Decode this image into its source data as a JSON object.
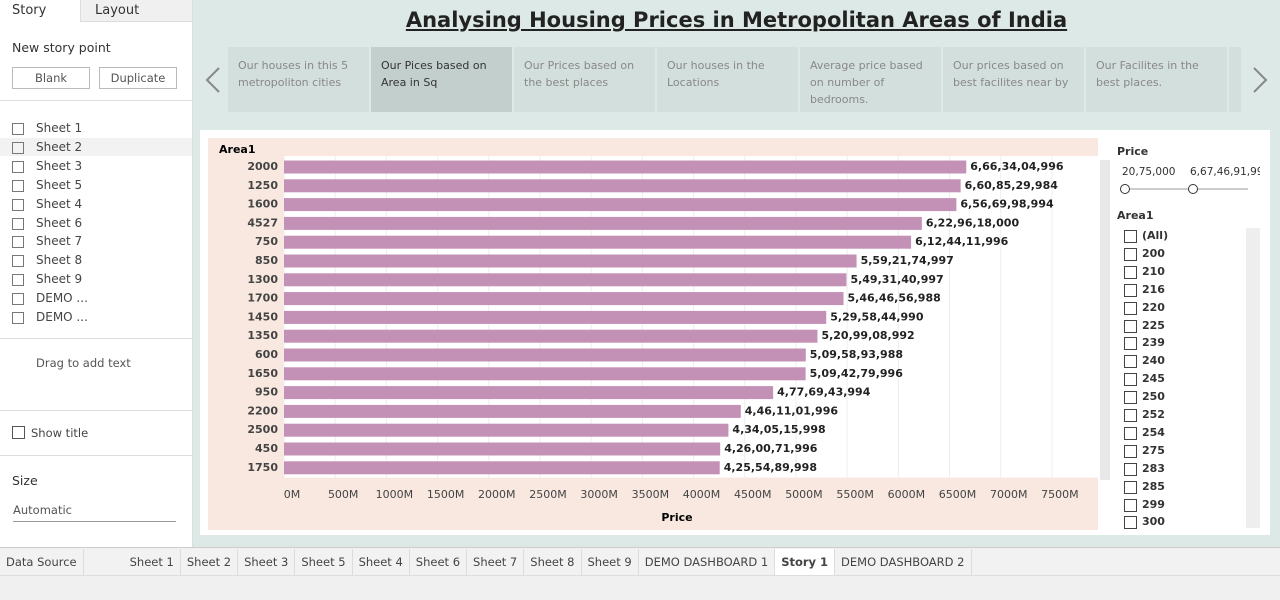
{
  "side_panel": {
    "tabs": [
      "Story",
      "Layout"
    ],
    "new_story_point": "New story point",
    "buttons": [
      "Blank",
      "Duplicate"
    ],
    "sheets": [
      "Sheet 1",
      "Sheet 2",
      "Sheet 3",
      "Sheet 5",
      "Sheet 4",
      "Sheet 6",
      "Sheet 7",
      "Sheet 8",
      "Sheet 9",
      "DEMO ...",
      "DEMO ..."
    ],
    "drag_text": "Drag to add text",
    "show_title": "Show title",
    "size_label": "Size",
    "size_value": "Automatic"
  },
  "story": {
    "title": "Analysing Housing Prices in Metropolitan Areas of India",
    "points": [
      "Our  houses in this 5 metropoliton cities",
      "Our Pices based on Area in Sq",
      "Our Prices based on the best places",
      "Our houses in the Locations",
      "Average price based on number of bedrooms.",
      "Our prices based on best facilites near by",
      "Our Facilites in the best places."
    ]
  },
  "chart_data": {
    "type": "bar",
    "orientation": "horizontal",
    "x_label": "Price",
    "y_label": "Area1",
    "categories": [
      "2000",
      "1250",
      "1600",
      "4527",
      "750",
      "850",
      "1300",
      "1700",
      "1450",
      "1350",
      "600",
      "1650",
      "950",
      "2200",
      "2500",
      "450",
      "1750"
    ],
    "values": [
      6663404996,
      6608529984,
      6566998994,
      6229618000,
      6124411996,
      5592174997,
      5493140997,
      5464656988,
      5295844990,
      5209908992,
      5095893988,
      5094279996,
      4776943994,
      4461101996,
      4340515998,
      4260071996,
      4255489998
    ],
    "value_labels": [
      "6,66,34,04,996",
      "6,60,85,29,984",
      "6,56,69,98,994",
      "6,22,96,18,000",
      "6,12,44,11,996",
      "5,59,21,74,997",
      "5,49,31,40,997",
      "5,46,46,56,988",
      "5,29,58,44,990",
      "5,20,99,08,992",
      "5,09,58,93,988",
      "5,09,42,79,996",
      "4,77,69,43,994",
      "4,46,11,01,996",
      "4,34,05,15,998",
      "4,26,00,71,996",
      "4,25,54,89,998"
    ],
    "color": "#c390b6",
    "grid": true,
    "xlim": [
      0,
      7950000000
    ],
    "xticks": [
      {
        "value": 0,
        "label": "0M"
      },
      {
        "value": 500000000,
        "label": "500M"
      },
      {
        "value": 1000000000,
        "label": "1000M"
      },
      {
        "value": 1500000000,
        "label": "1500M"
      },
      {
        "value": 2000000000,
        "label": "2000M"
      },
      {
        "value": 2500000000,
        "label": "2500M"
      },
      {
        "value": 3000000000,
        "label": "3000M"
      },
      {
        "value": 3500000000,
        "label": "3500M"
      },
      {
        "value": 4000000000,
        "label": "4000M"
      },
      {
        "value": 4500000000,
        "label": "4500M"
      },
      {
        "value": 5000000000,
        "label": "5000M"
      },
      {
        "value": 5500000000,
        "label": "5500M"
      },
      {
        "value": 6000000000,
        "label": "6000M"
      },
      {
        "value": 6500000000,
        "label": "6500M"
      },
      {
        "value": 7000000000,
        "label": "7000M"
      },
      {
        "value": 7500000000,
        "label": "7500M"
      }
    ]
  },
  "filters": {
    "price": {
      "title": "Price",
      "min": "20,75,000",
      "max": "6,67,46,91,99"
    },
    "area": {
      "title": "Area1",
      "items": [
        "(All)",
        "200",
        "210",
        "216",
        "220",
        "225",
        "239",
        "240",
        "245",
        "250",
        "252",
        "254",
        "275",
        "283",
        "285",
        "299",
        "300"
      ]
    }
  },
  "bottom_tabs": [
    "Data Source",
    "Sheet 1",
    "Sheet 2",
    "Sheet 3",
    "Sheet 5",
    "Sheet 4",
    "Sheet 6",
    "Sheet 7",
    "Sheet 8",
    "Sheet 9",
    "DEMO DASHBOARD 1",
    "Story 1",
    "DEMO DASHBOARD 2"
  ]
}
